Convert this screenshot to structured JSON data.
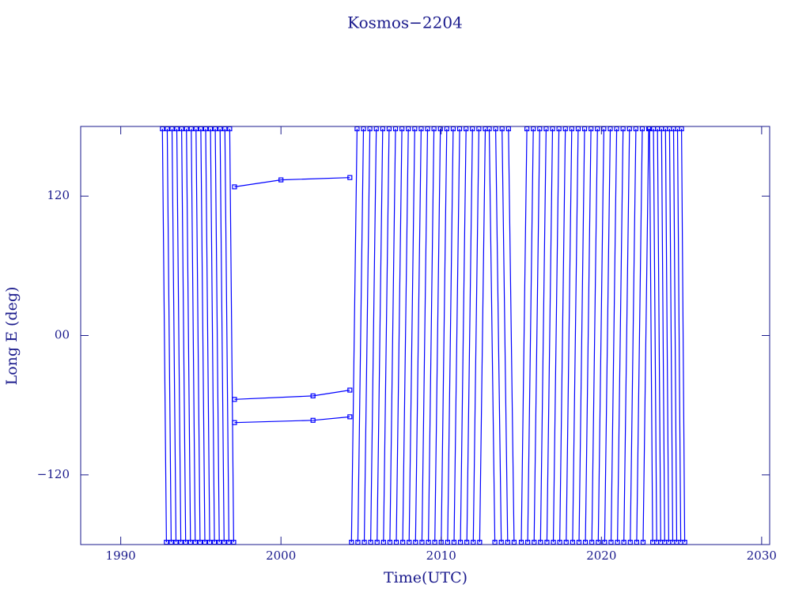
{
  "chart_data": {
    "type": "line",
    "title": "Kosmos−2204",
    "x_label": "Time(UTC)",
    "y_label": "Long E (deg)",
    "xlim": [
      1987.5,
      2030.5
    ],
    "ylim": [
      -180,
      180
    ],
    "xticks": [
      1990,
      2000,
      2010,
      2020,
      2030
    ],
    "yticks": [
      {
        "value": -120,
        "label": "−120"
      },
      {
        "value": 0,
        "label": "00"
      },
      120
    ],
    "color": "#0000ff",
    "axis_color": "#1a1a8c",
    "x": [
      1992.6,
      1992.85,
      null,
      1992.9,
      1993.15,
      null,
      1993.2,
      1993.45,
      null,
      1993.5,
      1993.75,
      null,
      1993.8,
      1994.05,
      null,
      1994.1,
      1994.35,
      null,
      1994.4,
      1994.65,
      null,
      1994.7,
      1994.95,
      null,
      1995.0,
      1995.25,
      null,
      1995.3,
      1995.55,
      null,
      1995.6,
      1995.85,
      null,
      1995.9,
      1996.15,
      null,
      1996.2,
      1996.45,
      null,
      1996.5,
      1996.75,
      null,
      1996.8,
      1997.05,
      null,
      1997.1,
      2000.0,
      2004.3,
      null,
      1997.1,
      2002.0,
      2004.3,
      null,
      1997.1,
      2002.0,
      2004.3,
      null,
      2004.4,
      2004.75,
      null,
      2004.8,
      2005.15,
      null,
      2005.2,
      2005.55,
      null,
      2005.6,
      2005.95,
      null,
      2006.0,
      2006.35,
      null,
      2006.4,
      2006.75,
      null,
      2006.8,
      2007.15,
      null,
      2007.2,
      2007.55,
      null,
      2007.6,
      2007.95,
      null,
      2008.0,
      2008.35,
      null,
      2008.4,
      2008.75,
      null,
      2008.8,
      2009.15,
      null,
      2009.2,
      2009.55,
      null,
      2009.6,
      2009.95,
      null,
      2010.0,
      2010.35,
      null,
      2010.4,
      2010.75,
      null,
      2010.8,
      2011.15,
      null,
      2011.2,
      2011.55,
      null,
      2011.6,
      2011.95,
      null,
      2012.0,
      2012.35,
      null,
      2012.4,
      2012.75,
      null,
      2013.0,
      2013.35,
      null,
      2013.4,
      2013.75,
      null,
      2013.8,
      2014.15,
      null,
      2014.2,
      2014.55,
      null,
      2015.0,
      2015.35,
      null,
      2015.4,
      2015.75,
      null,
      2015.8,
      2016.15,
      null,
      2016.2,
      2016.55,
      null,
      2016.6,
      2016.95,
      null,
      2017.0,
      2017.35,
      null,
      2017.4,
      2017.75,
      null,
      2017.8,
      2018.15,
      null,
      2018.2,
      2018.55,
      null,
      2018.6,
      2018.95,
      null,
      2019.0,
      2019.35,
      null,
      2019.4,
      2019.75,
      null,
      2019.8,
      2020.15,
      null,
      2020.2,
      2020.55,
      null,
      2020.6,
      2020.95,
      null,
      2021.0,
      2021.35,
      null,
      2021.4,
      2021.75,
      null,
      2021.8,
      2022.15,
      null,
      2022.2,
      2022.55,
      null,
      2022.6,
      2022.95,
      null,
      2023.0,
      2023.2,
      null,
      2023.25,
      2023.45,
      null,
      2023.5,
      2023.7,
      null,
      2023.75,
      2023.95,
      null,
      2024.0,
      2024.2,
      null,
      2024.25,
      2024.45,
      null,
      2024.5,
      2024.7,
      null,
      2024.75,
      2024.95,
      null,
      2025.0,
      2025.2
    ],
    "values": [
      178,
      -178,
      null,
      178,
      -178,
      null,
      178,
      -178,
      null,
      178,
      -178,
      null,
      178,
      -178,
      null,
      178,
      -178,
      null,
      178,
      -178,
      null,
      178,
      -178,
      null,
      178,
      -178,
      null,
      178,
      -178,
      null,
      178,
      -178,
      null,
      178,
      -178,
      null,
      178,
      -178,
      null,
      178,
      -178,
      null,
      178,
      -178,
      null,
      128,
      134,
      136,
      null,
      -55,
      -52,
      -47,
      null,
      -75,
      -73,
      -70,
      null,
      -178,
      178,
      null,
      -178,
      178,
      null,
      -178,
      178,
      null,
      -178,
      178,
      null,
      -178,
      178,
      null,
      -178,
      178,
      null,
      -178,
      178,
      null,
      -178,
      178,
      null,
      -178,
      178,
      null,
      -178,
      178,
      null,
      -178,
      178,
      null,
      -178,
      178,
      null,
      -178,
      178,
      null,
      -178,
      178,
      null,
      -178,
      178,
      null,
      -178,
      178,
      null,
      -178,
      178,
      null,
      -178,
      178,
      null,
      -178,
      178,
      null,
      -178,
      178,
      null,
      -178,
      178,
      null,
      178,
      -178,
      null,
      178,
      -178,
      null,
      178,
      -178,
      null,
      178,
      -178,
      null,
      -178,
      178,
      null,
      -178,
      178,
      null,
      -178,
      178,
      null,
      -178,
      178,
      null,
      -178,
      178,
      null,
      -178,
      178,
      null,
      -178,
      178,
      null,
      -178,
      178,
      null,
      -178,
      178,
      null,
      -178,
      178,
      null,
      -178,
      178,
      null,
      -178,
      178,
      null,
      -178,
      178,
      null,
      -178,
      178,
      null,
      -178,
      178,
      null,
      -178,
      178,
      null,
      -178,
      178,
      null,
      -178,
      178,
      null,
      -178,
      178,
      null,
      -178,
      178,
      null,
      178,
      -178,
      null,
      178,
      -178,
      null,
      178,
      -178,
      null,
      178,
      -178,
      null,
      178,
      -178,
      null,
      178,
      -178,
      null,
      178,
      -178,
      null,
      178,
      -178,
      null,
      178,
      -178
    ]
  }
}
